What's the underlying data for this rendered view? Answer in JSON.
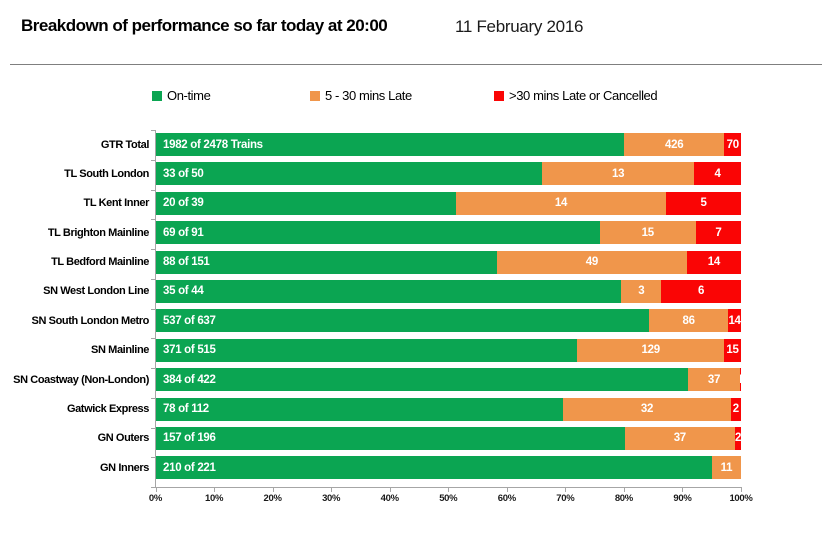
{
  "header": {
    "title": "Breakdown of performance so far today at 20:00",
    "date": "11 February 2016"
  },
  "legend": {
    "items": [
      {
        "label": "On-time",
        "color": "#0BA552"
      },
      {
        "label": "5 - 30 mins Late",
        "color": "#F0964B"
      },
      {
        "label": ">30 mins Late or Cancelled",
        "color": "#FA0505"
      }
    ]
  },
  "chart_data": {
    "type": "bar",
    "orientation": "horizontal-stacked-100percent",
    "title": "Breakdown of performance so far today at 20:00",
    "categories": [
      "GTR Total",
      "TL South London",
      "TL Kent Inner",
      "TL Brighton Mainline",
      "TL Bedford Mainline",
      "SN West London Line",
      "SN South London Metro",
      "SN Mainline",
      "SN Coastway (Non-London)",
      "Gatwick Express",
      "GN Outers",
      "GN Inners"
    ],
    "series": [
      {
        "name": "On-time",
        "color": "#0BA552",
        "values": [
          1982,
          33,
          20,
          69,
          88,
          35,
          537,
          371,
          384,
          78,
          157,
          210
        ]
      },
      {
        "name": "5 - 30 mins Late",
        "color": "#F0964B",
        "values": [
          426,
          13,
          14,
          15,
          49,
          3,
          86,
          129,
          37,
          32,
          37,
          11
        ]
      },
      {
        "name": ">30 mins Late or Cancelled",
        "color": "#FA0505",
        "values": [
          70,
          4,
          5,
          7,
          14,
          6,
          14,
          15,
          1,
          2,
          2,
          0
        ]
      }
    ],
    "totals": [
      2478,
      50,
      39,
      91,
      151,
      44,
      637,
      515,
      422,
      112,
      196,
      221
    ],
    "ontime_labels": [
      "1982 of 2478 Trains",
      "33 of 50",
      "20 of 39",
      "69 of 91",
      "88 of 151",
      "35 of 44",
      "537 of 637",
      "371 of 515",
      "384 of 422",
      "78 of 112",
      "157 of 196",
      "210 of 221"
    ],
    "tick_labels": [
      "0%",
      "10%",
      "20%",
      "30%",
      "40%",
      "50%",
      "60%",
      "70%",
      "80%",
      "90%",
      "100%"
    ],
    "xlim": [
      0,
      100
    ],
    "legend_position": "top",
    "grid": false
  }
}
